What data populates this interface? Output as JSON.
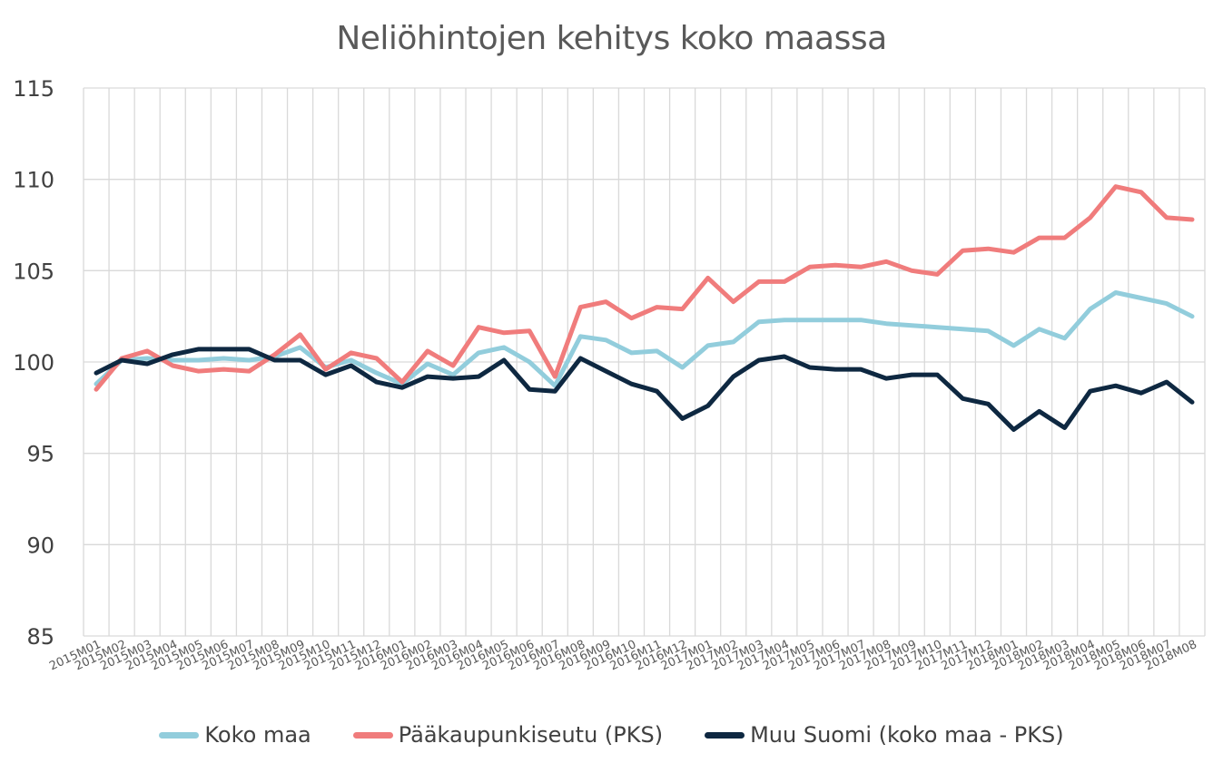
{
  "chart_data": {
    "type": "line",
    "title": "Neliöhintojen kehitys koko maassa",
    "xlabel": "",
    "ylabel": "",
    "ylim": [
      85,
      115
    ],
    "yticks": [
      85,
      90,
      95,
      100,
      105,
      110,
      115
    ],
    "grid": true,
    "legend_position": "bottom",
    "categories": [
      "2015M01",
      "2015M02",
      "2015M03",
      "2015M04",
      "2015M05",
      "2015M06",
      "2015M07",
      "2015M08",
      "2015M09",
      "2015M10",
      "2015M11",
      "2015M12",
      "2016M01",
      "2016M02",
      "2016M03",
      "2016M04",
      "2016M05",
      "2016M06",
      "2016M07",
      "2016M08",
      "2016M09",
      "2016M10",
      "2016M11",
      "2016M12",
      "2017M01",
      "2017M02",
      "2017M03",
      "2017M04",
      "2017M05",
      "2017M06",
      "2017M07",
      "2017M08",
      "2017M09",
      "2017M10",
      "2017M11",
      "2017M12",
      "2018M01",
      "2018M02",
      "2018M03",
      "2018M04",
      "2018M05",
      "2018M06",
      "2018M07",
      "2018M08"
    ],
    "series": [
      {
        "name": "Koko maa",
        "color": "#92CDDC",
        "values": [
          98.8,
          100.1,
          100.2,
          100.1,
          100.1,
          100.2,
          100.1,
          100.3,
          100.8,
          99.7,
          100.1,
          99.4,
          98.8,
          99.9,
          99.3,
          100.5,
          100.8,
          100.0,
          98.7,
          101.4,
          101.2,
          100.5,
          100.6,
          99.7,
          100.9,
          101.1,
          102.2,
          102.3,
          102.3,
          102.3,
          102.3,
          102.1,
          102.0,
          101.9,
          101.8,
          101.7,
          100.9,
          101.8,
          101.3,
          102.9,
          103.8,
          103.5,
          103.2,
          102.5
        ]
      },
      {
        "name": "Pääkaupunkiseutu (PKS)",
        "color": "#F07C7C",
        "values": [
          98.5,
          100.2,
          100.6,
          99.8,
          99.5,
          99.6,
          99.5,
          100.4,
          101.5,
          99.6,
          100.5,
          100.2,
          98.9,
          100.6,
          99.8,
          101.9,
          101.6,
          101.7,
          99.2,
          103.0,
          103.3,
          102.4,
          103.0,
          102.9,
          104.6,
          103.3,
          104.4,
          104.4,
          105.2,
          105.3,
          105.2,
          105.5,
          105.0,
          104.8,
          106.1,
          106.2,
          106.0,
          106.8,
          106.8,
          107.9,
          109.6,
          109.3,
          107.9,
          107.8
        ]
      },
      {
        "name": "Muu Suomi (koko maa - PKS)",
        "color": "#0E2841",
        "values": [
          99.4,
          100.1,
          99.9,
          100.4,
          100.7,
          100.7,
          100.7,
          100.1,
          100.1,
          99.3,
          99.8,
          98.9,
          98.6,
          99.2,
          99.1,
          99.2,
          100.1,
          98.5,
          98.4,
          100.2,
          99.5,
          98.8,
          98.4,
          96.9,
          97.6,
          99.2,
          100.1,
          100.3,
          99.7,
          99.6,
          99.6,
          99.1,
          99.3,
          99.3,
          98.0,
          97.7,
          96.3,
          97.3,
          96.4,
          98.4,
          98.7,
          98.3,
          98.9,
          97.8
        ]
      }
    ]
  }
}
